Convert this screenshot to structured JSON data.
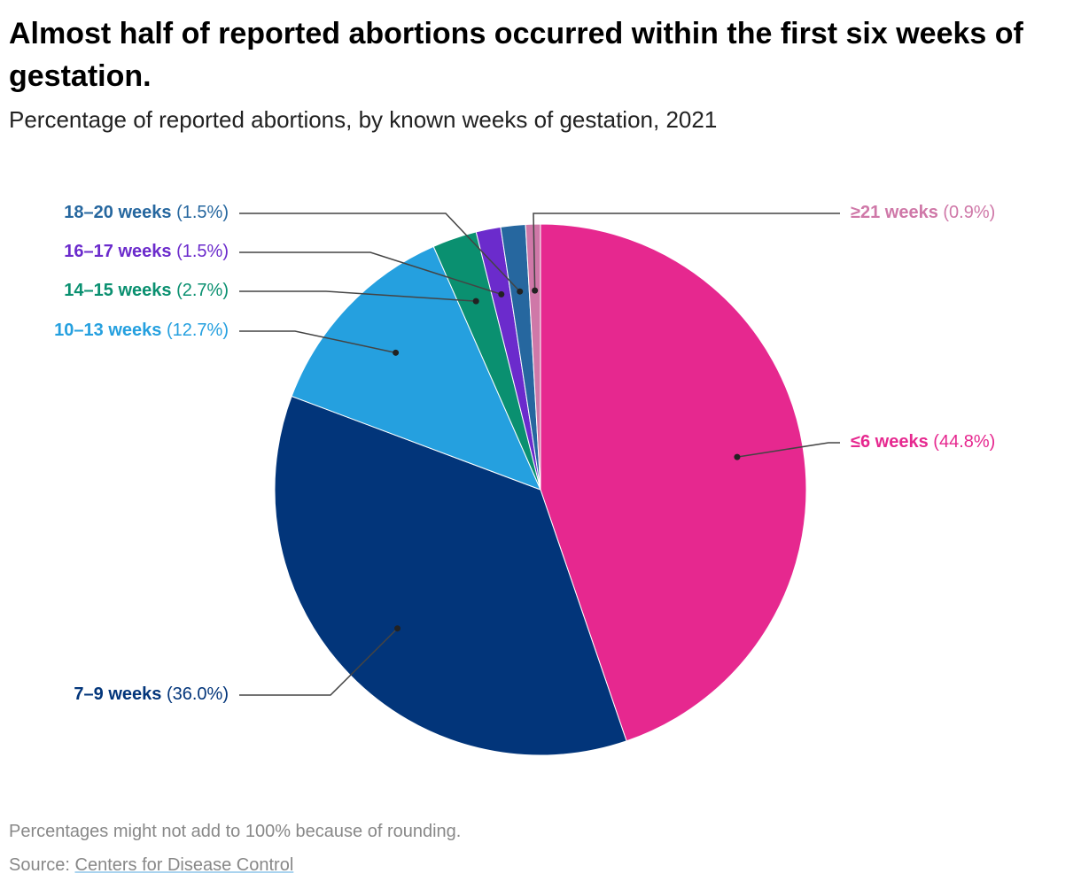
{
  "chart_data": {
    "type": "pie",
    "title": "Almost half of reported abortions occurred within the first six weeks of gestation.",
    "subtitle": "Percentage of reported abortions, by known weeks of gestation, 2021",
    "categories": [
      "≤6 weeks",
      "7–9 weeks",
      "10–13 weeks",
      "14–15 weeks",
      "16–17 weeks",
      "18–20 weeks",
      "≥21 weeks"
    ],
    "values": [
      44.8,
      36.0,
      12.7,
      2.7,
      1.5,
      1.5,
      0.9
    ],
    "value_labels": [
      "(44.8%)",
      "(36.0%)",
      "(12.7%)",
      "(2.7%)",
      "(1.5%)",
      "(1.5%)",
      "(0.9%)"
    ],
    "colors": [
      "#e6288f",
      "#02357a",
      "#25a0df",
      "#0a9070",
      "#6b2bcc",
      "#26679f",
      "#cf78a8"
    ],
    "note": "Percentages might not add to 100% because of rounding.",
    "source_label": "Source:",
    "source": "Centers for Disease Control"
  }
}
